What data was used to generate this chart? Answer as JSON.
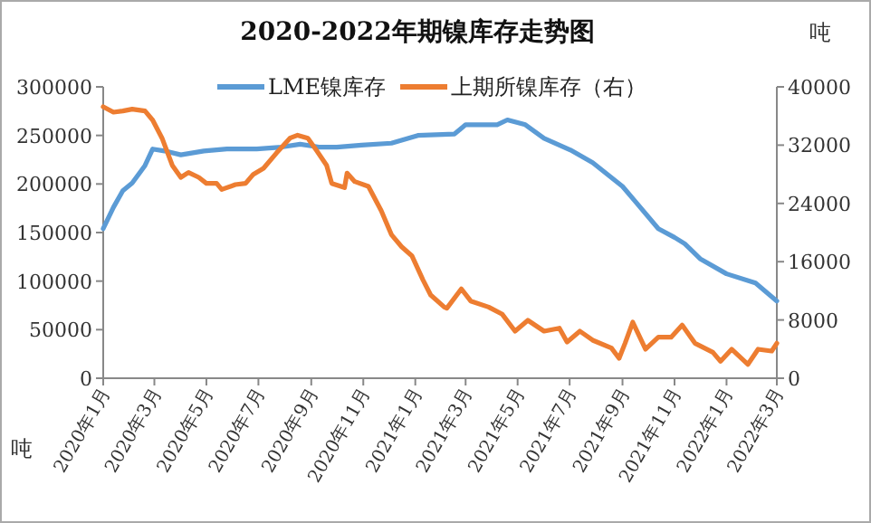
{
  "chart_data": {
    "type": "line",
    "title": "2020-2022年期镍库存走势图",
    "ylabel": "吨",
    "y2label": "吨",
    "xlim": [
      "2020-01-01",
      "2022-03-01"
    ],
    "xticks": [
      {
        "value": "2020-01-01",
        "label": "2020年1月"
      },
      {
        "value": "2020-03-01",
        "label": "2020年3月"
      },
      {
        "value": "2020-05-01",
        "label": "2020年5月"
      },
      {
        "value": "2020-07-01",
        "label": "2020年7月"
      },
      {
        "value": "2020-09-01",
        "label": "2020年9月"
      },
      {
        "value": "2020-11-01",
        "label": "2020年11月"
      },
      {
        "value": "2021-01-01",
        "label": "2021年1月"
      },
      {
        "value": "2021-03-01",
        "label": "2021年3月"
      },
      {
        "value": "2021-05-01",
        "label": "2021年5月"
      },
      {
        "value": "2021-07-01",
        "label": "2021年7月"
      },
      {
        "value": "2021-09-01",
        "label": "2021年9月"
      },
      {
        "value": "2021-11-01",
        "label": "2021年11月"
      },
      {
        "value": "2022-01-01",
        "label": "2022年1月"
      },
      {
        "value": "2022-03-01",
        "label": "2022年3月"
      }
    ],
    "ylim": [
      0,
      300000
    ],
    "yticks": [
      0,
      50000,
      100000,
      150000,
      200000,
      250000,
      300000
    ],
    "y2lim": [
      0,
      40000
    ],
    "y2ticks": [
      0,
      8000,
      16000,
      24000,
      32000,
      40000
    ],
    "legend": "top",
    "grid": false,
    "marker": "none",
    "line_style": "solid",
    "series": [
      {
        "name": "LME镍库存",
        "color": "#5b9bd5",
        "x": [
          "2020-01-01",
          "2020-01-13",
          "2020-01-24",
          "2020-02-04",
          "2020-02-19",
          "2020-02-28",
          "2020-03-13",
          "2020-04-01",
          "2020-04-28",
          "2020-05-25",
          "2020-06-29",
          "2020-07-28",
          "2020-08-19",
          "2020-09-10",
          "2020-10-01",
          "2020-10-30",
          "2020-12-04",
          "2021-01-04",
          "2021-02-16",
          "2021-03-01",
          "2021-04-07",
          "2021-04-19",
          "2021-05-10",
          "2021-06-01",
          "2021-07-02",
          "2021-07-28",
          "2021-09-01",
          "2021-09-16",
          "2021-10-13",
          "2021-11-01",
          "2021-11-13",
          "2021-12-01",
          "2022-01-01",
          "2022-02-04",
          "2022-03-01"
        ],
        "values": [
          154000,
          176000,
          193000,
          201000,
          219000,
          236000,
          234000,
          230000,
          234000,
          236000,
          236000,
          238000,
          241000,
          238000,
          238000,
          240000,
          242000,
          250000,
          251500,
          261000,
          261000,
          266000,
          261000,
          247000,
          235000,
          222000,
          197500,
          182000,
          154000,
          145000,
          138500,
          123000,
          107500,
          98000,
          79500
        ]
      },
      {
        "name": "上期所镍库存（右）",
        "color": "#ed7d31",
        "axis": "y2",
        "x": [
          "2020-01-01",
          "2020-01-13",
          "2020-01-24",
          "2020-02-04",
          "2020-02-19",
          "2020-02-28",
          "2020-03-10",
          "2020-03-22",
          "2020-04-01",
          "2020-04-10",
          "2020-04-22",
          "2020-05-01",
          "2020-05-13",
          "2020-05-19",
          "2020-06-04",
          "2020-06-16",
          "2020-06-25",
          "2020-07-07",
          "2020-07-22",
          "2020-08-07",
          "2020-08-16",
          "2020-08-28",
          "2020-09-07",
          "2020-09-19",
          "2020-09-25",
          "2020-10-10",
          "2020-10-13",
          "2020-10-22",
          "2020-11-07",
          "2020-11-22",
          "2020-12-04",
          "2020-12-16",
          "2020-12-28",
          "2021-01-10",
          "2021-01-19",
          "2021-02-04",
          "2021-02-07",
          "2021-02-24",
          "2021-03-07",
          "2021-03-28",
          "2021-04-13",
          "2021-04-28",
          "2021-05-13",
          "2021-06-01",
          "2021-06-19",
          "2021-06-28",
          "2021-07-13",
          "2021-07-28",
          "2021-08-19",
          "2021-08-28",
          "2021-09-04",
          "2021-09-13",
          "2021-09-28",
          "2021-10-13",
          "2021-10-28",
          "2021-11-10",
          "2021-11-25",
          "2021-12-16",
          "2021-12-25",
          "2022-01-07",
          "2022-01-26",
          "2022-02-07",
          "2022-02-23",
          "2022-03-01"
        ],
        "values": [
          37270,
          36520,
          36690,
          36940,
          36690,
          35440,
          32960,
          29230,
          27580,
          28240,
          27580,
          26750,
          26750,
          25920,
          26580,
          26750,
          27990,
          28820,
          30890,
          32960,
          33370,
          32960,
          31300,
          29230,
          26750,
          26170,
          28160,
          27000,
          26340,
          23020,
          19710,
          18050,
          16810,
          13500,
          11430,
          9770,
          9610,
          12260,
          10600,
          9770,
          8780,
          6460,
          7950,
          6460,
          6870,
          4970,
          6460,
          5220,
          4140,
          2730,
          4800,
          7700,
          3980,
          5630,
          5630,
          7290,
          4800,
          3560,
          2320,
          3980,
          1900,
          3980,
          3730,
          4800
        ]
      }
    ]
  }
}
